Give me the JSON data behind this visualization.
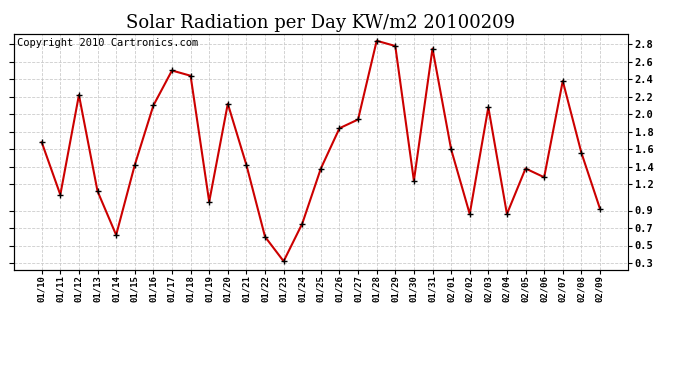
{
  "title": "Solar Radiation per Day KW/m2 20100209",
  "copyright": "Copyright 2010 Cartronics.com",
  "dates": [
    "01/10",
    "01/11",
    "01/12",
    "01/13",
    "01/14",
    "01/15",
    "01/16",
    "01/17",
    "01/18",
    "01/19",
    "01/20",
    "01/21",
    "01/22",
    "01/23",
    "01/24",
    "01/25",
    "01/26",
    "01/27",
    "01/28",
    "01/29",
    "01/30",
    "01/31",
    "02/01",
    "02/02",
    "02/03",
    "02/04",
    "02/05",
    "02/06",
    "02/07",
    "02/08",
    "02/09"
  ],
  "values": [
    1.68,
    1.08,
    2.22,
    1.12,
    0.62,
    1.42,
    2.1,
    2.5,
    2.44,
    1.0,
    2.12,
    1.42,
    0.6,
    0.32,
    0.75,
    1.38,
    1.84,
    1.94,
    2.84,
    2.78,
    1.24,
    2.75,
    1.6,
    0.86,
    2.08,
    0.86,
    1.38,
    1.28,
    2.38,
    1.56,
    0.92
  ],
  "line_color": "#cc0000",
  "marker_color": "#000000",
  "bg_color": "#ffffff",
  "grid_color": "#cccccc",
  "ylim": [
    0.22,
    2.92
  ],
  "yticks": [
    0.3,
    0.5,
    0.7,
    0.9,
    1.2,
    1.4,
    1.6,
    1.8,
    2.0,
    2.2,
    2.4,
    2.6,
    2.8
  ],
  "ytick_labels": [
    "0.3",
    "0.5",
    "0.7",
    "0.9",
    "1.2",
    "1.4",
    "1.6",
    "1.8",
    "2.0",
    "2.2",
    "2.4",
    "2.6",
    "2.8"
  ],
  "title_fontsize": 13,
  "copyright_fontsize": 7.5
}
